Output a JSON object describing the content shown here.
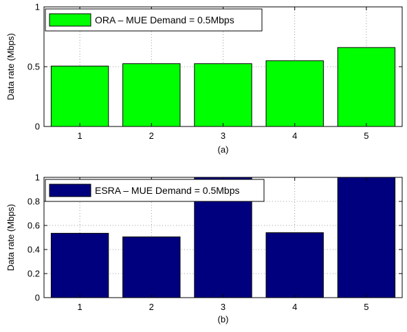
{
  "chart_data": [
    {
      "type": "bar",
      "title": "",
      "xlabel": "(a)",
      "ylabel": "Data rate (Mbps)",
      "categories": [
        "1",
        "2",
        "3",
        "4",
        "5"
      ],
      "series": [
        {
          "name": "ORA – MUE Demand = 0.5Mbps",
          "values": [
            0.505,
            0.525,
            0.525,
            0.55,
            0.66
          ]
        }
      ],
      "ylim": [
        0,
        1
      ],
      "yticks": [
        0,
        0.5,
        1
      ],
      "ytick_labels": [
        "0",
        "0.5",
        "1"
      ],
      "grid": true,
      "legend_position": "top-left",
      "color": "#00ff00"
    },
    {
      "type": "bar",
      "title": "",
      "xlabel": "(b)",
      "ylabel": "Data rate (Mbps)",
      "categories": [
        "1",
        "2",
        "3",
        "4",
        "5"
      ],
      "series": [
        {
          "name": "ESRA – MUE Demand = 0.5Mbps",
          "values": [
            0.535,
            0.505,
            1.0,
            0.54,
            1.0
          ]
        }
      ],
      "ylim": [
        0,
        1
      ],
      "yticks": [
        0,
        0.2,
        0.4,
        0.6,
        0.8,
        1
      ],
      "ytick_labels": [
        "0",
        "0.2",
        "0.4",
        "0.6",
        "0.8",
        "1"
      ],
      "grid": true,
      "legend_position": "top-left",
      "color": "#00007f"
    }
  ]
}
